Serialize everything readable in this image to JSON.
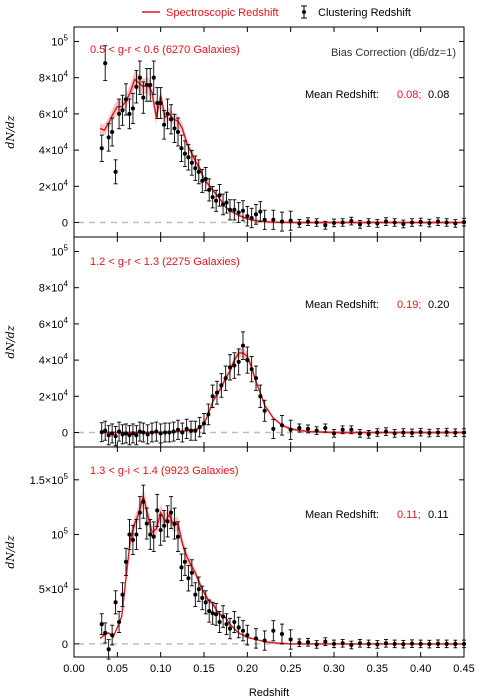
{
  "legend": {
    "spec_label": "Spectroscopic Redshift",
    "clus_label": "Clustering Redshift"
  },
  "colors": {
    "spec": "#e8141b",
    "spec_band": "#f4a3a3",
    "clus": "#000000",
    "zero_line": "#bdbdbd"
  },
  "xaxis": {
    "label": "Redshift",
    "ticks": [
      "0.00",
      "0.05",
      "0.10",
      "0.15",
      "0.20",
      "0.25",
      "0.30",
      "0.35",
      "0.40",
      "0.45"
    ],
    "range": [
      0.0,
      0.45
    ]
  },
  "bias_note": "Bias Correction (db̄/dz=1)",
  "panels": [
    {
      "selection": "0.5 < g-r < 0.6 (6270 Galaxies)",
      "mean_label": "Mean Redshift:",
      "mean_spec": "0.08;",
      "mean_clus": "0.08",
      "ylabel": "dN/dz",
      "ytick_labels": [
        {
          "base": "0",
          "exp": ""
        },
        {
          "base": "2×10",
          "exp": "4"
        },
        {
          "base": "4×10",
          "exp": "4"
        },
        {
          "base": "6×10",
          "exp": "4"
        },
        {
          "base": "8×10",
          "exp": "4"
        },
        {
          "base": "10",
          "exp": "5"
        }
      ]
    },
    {
      "selection": "1.2 < g-r < 1.3 (2275 Galaxies)",
      "mean_label": "Mean Redshift:",
      "mean_spec": "0.19;",
      "mean_clus": "0.20",
      "ylabel": "dN/dz",
      "ytick_labels": [
        {
          "base": "0",
          "exp": ""
        },
        {
          "base": "2×10",
          "exp": "4"
        },
        {
          "base": "4×10",
          "exp": "4"
        },
        {
          "base": "6×10",
          "exp": "4"
        },
        {
          "base": "8×10",
          "exp": "4"
        },
        {
          "base": "10",
          "exp": "5"
        }
      ]
    },
    {
      "selection": "1.3 < g-i < 1.4 (9923 Galaxies)",
      "mean_label": "Mean Redshift:",
      "mean_spec": "0.11;",
      "mean_clus": "0.11",
      "ylabel": "dN/dz",
      "ytick_labels": [
        {
          "base": "0",
          "exp": ""
        },
        {
          "base": "5×10",
          "exp": "4"
        },
        {
          "base": "10",
          "exp": "5"
        },
        {
          "base": "1.5×10",
          "exp": "5"
        }
      ]
    }
  ],
  "chart_data": [
    {
      "type": "line",
      "title": "",
      "xlabel": "Redshift",
      "ylabel": "dN/dz",
      "xlim": [
        0.0,
        0.45
      ],
      "ylim": [
        -8000,
        108000
      ],
      "yticks": [
        0,
        20000,
        40000,
        60000,
        80000,
        100000
      ],
      "series": [
        {
          "name": "Spectroscopic Redshift",
          "x": [
            0.03,
            0.035,
            0.04,
            0.045,
            0.05,
            0.055,
            0.06,
            0.065,
            0.07,
            0.075,
            0.08,
            0.085,
            0.09,
            0.095,
            0.1,
            0.105,
            0.11,
            0.115,
            0.12,
            0.125,
            0.13,
            0.135,
            0.14,
            0.145,
            0.15,
            0.155,
            0.16,
            0.165,
            0.17,
            0.175,
            0.18,
            0.19,
            0.2,
            0.21,
            0.22,
            0.23,
            0.24,
            0.25,
            0.27,
            0.3,
            0.35,
            0.4,
            0.45
          ],
          "y": [
            52000,
            51000,
            55000,
            60000,
            64000,
            64000,
            67000,
            72000,
            79000,
            77000,
            75000,
            76000,
            72000,
            58000,
            70000,
            58000,
            60000,
            57000,
            56000,
            52000,
            44000,
            39000,
            34000,
            30000,
            24000,
            21000,
            18000,
            15000,
            12000,
            8500,
            6500,
            4000,
            2000,
            1000,
            500,
            200,
            100,
            0,
            0,
            0,
            0,
            0,
            0
          ]
        },
        {
          "name": "Clustering Redshift",
          "x": [
            0.032,
            0.036,
            0.04,
            0.044,
            0.048,
            0.052,
            0.056,
            0.06,
            0.064,
            0.068,
            0.072,
            0.076,
            0.08,
            0.084,
            0.088,
            0.092,
            0.096,
            0.1,
            0.104,
            0.108,
            0.112,
            0.116,
            0.12,
            0.124,
            0.128,
            0.132,
            0.136,
            0.14,
            0.144,
            0.148,
            0.152,
            0.156,
            0.16,
            0.164,
            0.168,
            0.172,
            0.176,
            0.18,
            0.185,
            0.19,
            0.195,
            0.2,
            0.205,
            0.21,
            0.215,
            0.22,
            0.23,
            0.24,
            0.25,
            0.26,
            0.27,
            0.28,
            0.29,
            0.3,
            0.31,
            0.32,
            0.33,
            0.34,
            0.35,
            0.36,
            0.37,
            0.38,
            0.39,
            0.4,
            0.41,
            0.42,
            0.43,
            0.44,
            0.45
          ],
          "y": [
            41000,
            88000,
            47000,
            50000,
            28000,
            60000,
            62000,
            68000,
            60000,
            63000,
            75000,
            80000,
            69000,
            76000,
            76000,
            80000,
            66000,
            66000,
            54000,
            60000,
            57000,
            52000,
            50000,
            41000,
            38000,
            36000,
            33000,
            30000,
            28000,
            23000,
            24000,
            18000,
            14000,
            12000,
            15000,
            10000,
            11000,
            7000,
            7000,
            5500,
            6500,
            3500,
            2500,
            4500,
            6000,
            1500,
            1500,
            500,
            1000,
            -500,
            500,
            0,
            -1500,
            -200,
            0,
            800,
            -1000,
            0,
            -500,
            500,
            0,
            -800,
            0,
            300,
            -300,
            500,
            0,
            -500,
            200
          ]
        }
      ]
    },
    {
      "type": "line",
      "title": "",
      "xlabel": "Redshift",
      "ylabel": "dN/dz",
      "xlim": [
        0.0,
        0.45
      ],
      "ylim": [
        -8000,
        108000
      ],
      "yticks": [
        0,
        20000,
        40000,
        60000,
        80000,
        100000
      ],
      "series": [
        {
          "name": "Spectroscopic Redshift",
          "x": [
            0.03,
            0.05,
            0.08,
            0.1,
            0.11,
            0.12,
            0.13,
            0.14,
            0.145,
            0.15,
            0.155,
            0.16,
            0.165,
            0.17,
            0.175,
            0.18,
            0.185,
            0.19,
            0.195,
            0.2,
            0.205,
            0.21,
            0.215,
            0.22,
            0.23,
            0.24,
            0.25,
            0.27,
            0.3,
            0.35,
            0.4,
            0.45
          ],
          "y": [
            0,
            0,
            0,
            100,
            300,
            500,
            1000,
            1500,
            2500,
            5000,
            10000,
            17000,
            21000,
            25000,
            30000,
            34000,
            40000,
            44000,
            44000,
            42000,
            36000,
            28000,
            22000,
            15000,
            8000,
            4000,
            2000,
            500,
            0,
            0,
            0,
            0
          ]
        },
        {
          "name": "Clustering Redshift",
          "x": [
            0.032,
            0.036,
            0.04,
            0.044,
            0.048,
            0.052,
            0.056,
            0.06,
            0.064,
            0.068,
            0.072,
            0.076,
            0.08,
            0.085,
            0.09,
            0.095,
            0.1,
            0.105,
            0.11,
            0.115,
            0.12,
            0.125,
            0.13,
            0.135,
            0.14,
            0.145,
            0.15,
            0.155,
            0.16,
            0.165,
            0.17,
            0.175,
            0.18,
            0.185,
            0.19,
            0.195,
            0.2,
            0.205,
            0.21,
            0.215,
            0.22,
            0.23,
            0.24,
            0.25,
            0.26,
            0.27,
            0.28,
            0.29,
            0.3,
            0.31,
            0.32,
            0.33,
            0.34,
            0.35,
            0.36,
            0.37,
            0.38,
            0.39,
            0.4,
            0.41,
            0.42,
            0.43,
            0.44,
            0.45
          ],
          "y": [
            200,
            1000,
            -1500,
            -500,
            -2000,
            500,
            -1000,
            -500,
            -1500,
            -500,
            -1500,
            500,
            0,
            -1000,
            0,
            500,
            -500,
            0,
            0,
            500,
            1500,
            0,
            2000,
            1000,
            1000,
            3000,
            5000,
            10000,
            20000,
            22000,
            26000,
            30000,
            36000,
            37000,
            39000,
            48000,
            40000,
            35000,
            30000,
            20000,
            12000,
            2000,
            4000,
            1500,
            2500,
            2000,
            1000,
            2500,
            -500,
            1500,
            1500,
            -500,
            -1000,
            0,
            500,
            -500,
            0,
            -200,
            200,
            -300,
            0,
            200,
            -100,
            0
          ]
        }
      ]
    },
    {
      "type": "line",
      "title": "",
      "xlabel": "Redshift",
      "ylabel": "dN/dz",
      "xlim": [
        0.0,
        0.45
      ],
      "ylim": [
        -12000,
        180000
      ],
      "yticks": [
        0,
        50000,
        100000,
        150000
      ],
      "series": [
        {
          "name": "Spectroscopic Redshift",
          "x": [
            0.03,
            0.035,
            0.04,
            0.045,
            0.05,
            0.055,
            0.06,
            0.065,
            0.07,
            0.075,
            0.08,
            0.085,
            0.09,
            0.095,
            0.1,
            0.105,
            0.11,
            0.115,
            0.12,
            0.125,
            0.13,
            0.135,
            0.14,
            0.145,
            0.15,
            0.155,
            0.16,
            0.165,
            0.17,
            0.175,
            0.18,
            0.19,
            0.2,
            0.21,
            0.22,
            0.23,
            0.24,
            0.25,
            0.27,
            0.3,
            0.35,
            0.4,
            0.45
          ],
          "y": [
            5000,
            8000,
            10000,
            6000,
            15000,
            25000,
            60000,
            95000,
            110000,
            120000,
            135000,
            118000,
            102000,
            105000,
            120000,
            112000,
            118000,
            108000,
            110000,
            92000,
            80000,
            72000,
            65000,
            55000,
            47000,
            40000,
            37000,
            30000,
            26000,
            24000,
            18000,
            10000,
            6000,
            4000,
            2000,
            1000,
            500,
            0,
            0,
            0,
            0,
            0,
            0
          ]
        },
        {
          "name": "Clustering Redshift",
          "x": [
            0.032,
            0.036,
            0.04,
            0.044,
            0.048,
            0.052,
            0.056,
            0.06,
            0.064,
            0.068,
            0.072,
            0.076,
            0.08,
            0.084,
            0.088,
            0.092,
            0.096,
            0.1,
            0.104,
            0.108,
            0.112,
            0.116,
            0.12,
            0.124,
            0.128,
            0.132,
            0.136,
            0.14,
            0.144,
            0.148,
            0.152,
            0.156,
            0.16,
            0.164,
            0.168,
            0.172,
            0.176,
            0.18,
            0.185,
            0.19,
            0.195,
            0.2,
            0.21,
            0.22,
            0.23,
            0.24,
            0.25,
            0.26,
            0.27,
            0.28,
            0.29,
            0.3,
            0.31,
            0.32,
            0.33,
            0.34,
            0.35,
            0.36,
            0.37,
            0.38,
            0.39,
            0.4,
            0.41,
            0.42,
            0.43,
            0.44,
            0.45
          ],
          "y": [
            18000,
            10000,
            -5000,
            8000,
            38000,
            20000,
            45000,
            75000,
            100000,
            95000,
            100000,
            120000,
            130000,
            110000,
            100000,
            98000,
            122000,
            104000,
            108000,
            112000,
            120000,
            110000,
            98000,
            70000,
            75000,
            60000,
            65000,
            45000,
            50000,
            42000,
            38000,
            30000,
            28000,
            27000,
            20000,
            25000,
            18000,
            14000,
            20000,
            15000,
            12000,
            8000,
            5000,
            3000,
            12000,
            9000,
            4000,
            1000,
            1500,
            -500,
            2000,
            0,
            500,
            -1000,
            500,
            0,
            -500,
            500,
            0,
            -300,
            200,
            0,
            -200,
            100,
            0,
            -100,
            0
          ]
        }
      ]
    }
  ]
}
